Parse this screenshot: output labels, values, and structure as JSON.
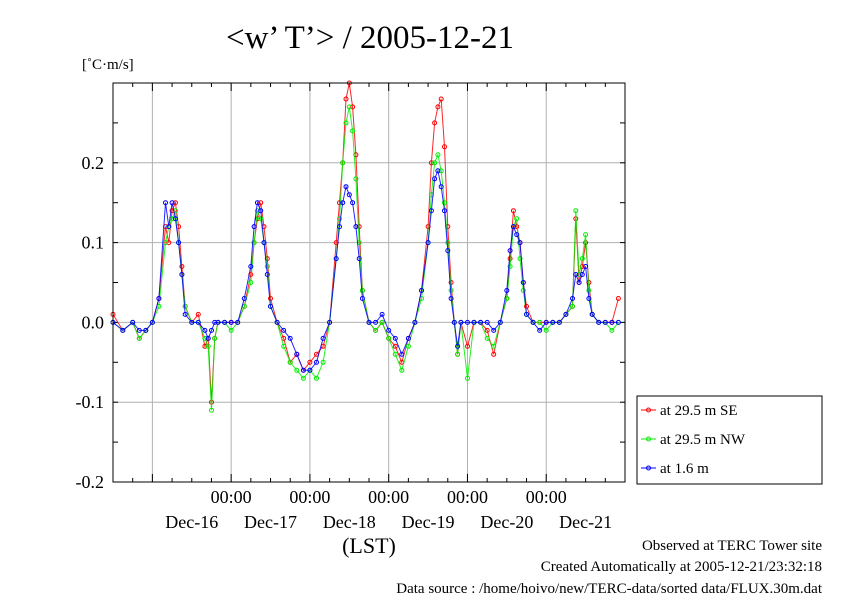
{
  "chart_data": {
    "type": "line",
    "title": "<w’ T’> / 2005-12-21",
    "ylabel": "[˚C·m/s]",
    "xlabel": "(LST)",
    "ylim": [
      -0.2,
      0.3
    ],
    "yticks": [
      "0.2",
      "0.1",
      "0.0",
      "-0.1",
      "-0.2"
    ],
    "x_time_labels": [
      "00:00",
      "00:00",
      "00:00",
      "00:00",
      "00:00"
    ],
    "x_date_labels": [
      "Dec-16",
      "Dec-17",
      "Dec-18",
      "Dec-19",
      "Dec-20",
      "Dec-21"
    ],
    "x_unit": "hours since start of Dec-15 12:00 LST",
    "grid": true,
    "legend_position": "bottom-right outside",
    "series": [
      {
        "name": "at 29.5 m SE",
        "color": "#ff0000",
        "points": [
          [
            0,
            0.01
          ],
          [
            3,
            -0.01
          ],
          [
            6,
            0.0
          ],
          [
            8,
            -0.02
          ],
          [
            10,
            -0.01
          ],
          [
            12,
            0.0
          ],
          [
            14,
            0.03
          ],
          [
            16,
            0.12
          ],
          [
            17,
            0.1
          ],
          [
            18,
            0.14
          ],
          [
            19,
            0.15
          ],
          [
            20,
            0.12
          ],
          [
            21,
            0.07
          ],
          [
            22,
            0.02
          ],
          [
            24,
            0.0
          ],
          [
            26,
            0.01
          ],
          [
            28,
            -0.03
          ],
          [
            29,
            -0.02
          ],
          [
            30,
            -0.1
          ],
          [
            31,
            -0.02
          ],
          [
            32,
            0.0
          ],
          [
            34,
            0.0
          ],
          [
            36,
            0.0
          ],
          [
            38,
            0.0
          ],
          [
            40,
            0.02
          ],
          [
            42,
            0.06
          ],
          [
            43,
            0.1
          ],
          [
            44,
            0.13
          ],
          [
            45,
            0.15
          ],
          [
            46,
            0.12
          ],
          [
            47,
            0.08
          ],
          [
            48,
            0.03
          ],
          [
            50,
            0.0
          ],
          [
            52,
            -0.02
          ],
          [
            54,
            -0.05
          ],
          [
            56,
            -0.04
          ],
          [
            58,
            -0.06
          ],
          [
            60,
            -0.05
          ],
          [
            62,
            -0.04
          ],
          [
            64,
            -0.03
          ],
          [
            66,
            0.0
          ],
          [
            68,
            0.1
          ],
          [
            69,
            0.15
          ],
          [
            70,
            0.2
          ],
          [
            71,
            0.28
          ],
          [
            72,
            0.3
          ],
          [
            73,
            0.27
          ],
          [
            74,
            0.21
          ],
          [
            75,
            0.12
          ],
          [
            76,
            0.04
          ],
          [
            78,
            0.0
          ],
          [
            80,
            -0.01
          ],
          [
            82,
            0.0
          ],
          [
            84,
            -0.02
          ],
          [
            86,
            -0.03
          ],
          [
            88,
            -0.05
          ],
          [
            90,
            -0.02
          ],
          [
            92,
            0.0
          ],
          [
            94,
            0.04
          ],
          [
            96,
            0.12
          ],
          [
            97,
            0.2
          ],
          [
            98,
            0.25
          ],
          [
            99,
            0.27
          ],
          [
            100,
            0.28
          ],
          [
            101,
            0.22
          ],
          [
            102,
            0.12
          ],
          [
            103,
            0.05
          ],
          [
            104,
            0.0
          ],
          [
            105,
            -0.04
          ],
          [
            106,
            0.0
          ],
          [
            108,
            -0.03
          ],
          [
            110,
            0.0
          ],
          [
            112,
            0.0
          ],
          [
            114,
            -0.01
          ],
          [
            116,
            -0.04
          ],
          [
            118,
            0.0
          ],
          [
            120,
            0.03
          ],
          [
            121,
            0.08
          ],
          [
            122,
            0.14
          ],
          [
            123,
            0.12
          ],
          [
            124,
            0.1
          ],
          [
            125,
            0.05
          ],
          [
            126,
            0.02
          ],
          [
            128,
            0.0
          ],
          [
            130,
            0.0
          ],
          [
            132,
            0.0
          ],
          [
            134,
            0.0
          ],
          [
            136,
            0.0
          ],
          [
            138,
            0.01
          ],
          [
            140,
            0.02
          ],
          [
            141,
            0.13
          ],
          [
            142,
            0.05
          ],
          [
            143,
            0.07
          ],
          [
            144,
            0.1
          ],
          [
            145,
            0.05
          ],
          [
            146,
            0.01
          ],
          [
            148,
            0.0
          ],
          [
            150,
            0.0
          ],
          [
            152,
            0.0
          ],
          [
            154,
            0.03
          ]
        ]
      },
      {
        "name": "at 29.5 m NW",
        "color": "#00ee00",
        "points": [
          [
            0,
            0.0
          ],
          [
            3,
            -0.01
          ],
          [
            6,
            0.0
          ],
          [
            8,
            -0.02
          ],
          [
            10,
            -0.01
          ],
          [
            12,
            0.0
          ],
          [
            14,
            0.02
          ],
          [
            16,
            0.1
          ],
          [
            17,
            0.12
          ],
          [
            18,
            0.13
          ],
          [
            19,
            0.14
          ],
          [
            20,
            0.1
          ],
          [
            21,
            0.06
          ],
          [
            22,
            0.02
          ],
          [
            24,
            0.0
          ],
          [
            26,
            0.0
          ],
          [
            28,
            -0.02
          ],
          [
            29,
            -0.03
          ],
          [
            30,
            -0.11
          ],
          [
            31,
            -0.02
          ],
          [
            32,
            0.0
          ],
          [
            34,
            0.0
          ],
          [
            36,
            -0.01
          ],
          [
            38,
            0.0
          ],
          [
            40,
            0.02
          ],
          [
            42,
            0.05
          ],
          [
            43,
            0.1
          ],
          [
            44,
            0.14
          ],
          [
            45,
            0.13
          ],
          [
            46,
            0.1
          ],
          [
            47,
            0.07
          ],
          [
            48,
            0.02
          ],
          [
            50,
            0.0
          ],
          [
            52,
            -0.03
          ],
          [
            54,
            -0.05
          ],
          [
            56,
            -0.06
          ],
          [
            58,
            -0.07
          ],
          [
            60,
            -0.06
          ],
          [
            62,
            -0.07
          ],
          [
            64,
            -0.05
          ],
          [
            66,
            0.0
          ],
          [
            68,
            0.08
          ],
          [
            69,
            0.13
          ],
          [
            70,
            0.2
          ],
          [
            71,
            0.25
          ],
          [
            72,
            0.27
          ],
          [
            73,
            0.24
          ],
          [
            74,
            0.18
          ],
          [
            75,
            0.1
          ],
          [
            76,
            0.04
          ],
          [
            78,
            0.0
          ],
          [
            80,
            -0.01
          ],
          [
            82,
            0.0
          ],
          [
            84,
            -0.02
          ],
          [
            86,
            -0.04
          ],
          [
            88,
            -0.06
          ],
          [
            90,
            -0.03
          ],
          [
            92,
            0.0
          ],
          [
            94,
            0.03
          ],
          [
            96,
            0.1
          ],
          [
            97,
            0.16
          ],
          [
            98,
            0.2
          ],
          [
            99,
            0.21
          ],
          [
            100,
            0.19
          ],
          [
            101,
            0.15
          ],
          [
            102,
            0.1
          ],
          [
            103,
            0.04
          ],
          [
            104,
            0.0
          ],
          [
            105,
            -0.04
          ],
          [
            106,
            0.0
          ],
          [
            108,
            -0.07
          ],
          [
            110,
            0.0
          ],
          [
            112,
            0.0
          ],
          [
            114,
            -0.02
          ],
          [
            116,
            -0.03
          ],
          [
            118,
            0.0
          ],
          [
            120,
            0.03
          ],
          [
            121,
            0.07
          ],
          [
            122,
            0.12
          ],
          [
            123,
            0.13
          ],
          [
            124,
            0.08
          ],
          [
            125,
            0.04
          ],
          [
            126,
            0.01
          ],
          [
            128,
            0.0
          ],
          [
            130,
            0.0
          ],
          [
            132,
            -0.01
          ],
          [
            134,
            0.0
          ],
          [
            136,
            0.0
          ],
          [
            138,
            0.01
          ],
          [
            140,
            0.02
          ],
          [
            141,
            0.14
          ],
          [
            142,
            0.06
          ],
          [
            143,
            0.08
          ],
          [
            144,
            0.11
          ],
          [
            145,
            0.04
          ],
          [
            146,
            0.01
          ],
          [
            148,
            0.0
          ],
          [
            150,
            0.0
          ],
          [
            152,
            -0.01
          ],
          [
            154,
            0.0
          ]
        ]
      },
      {
        "name": "at 1.6 m",
        "color": "#0000ff",
        "points": [
          [
            0,
            0.0
          ],
          [
            3,
            -0.01
          ],
          [
            6,
            0.0
          ],
          [
            8,
            -0.01
          ],
          [
            10,
            -0.01
          ],
          [
            12,
            0.0
          ],
          [
            14,
            0.03
          ],
          [
            16,
            0.15
          ],
          [
            17,
            0.12
          ],
          [
            18,
            0.15
          ],
          [
            19,
            0.13
          ],
          [
            20,
            0.1
          ],
          [
            21,
            0.06
          ],
          [
            22,
            0.01
          ],
          [
            24,
            0.0
          ],
          [
            26,
            0.0
          ],
          [
            28,
            -0.01
          ],
          [
            29,
            -0.02
          ],
          [
            30,
            -0.01
          ],
          [
            31,
            0.0
          ],
          [
            32,
            0.0
          ],
          [
            34,
            0.0
          ],
          [
            36,
            0.0
          ],
          [
            38,
            0.0
          ],
          [
            40,
            0.03
          ],
          [
            42,
            0.07
          ],
          [
            43,
            0.12
          ],
          [
            44,
            0.15
          ],
          [
            45,
            0.14
          ],
          [
            46,
            0.1
          ],
          [
            47,
            0.06
          ],
          [
            48,
            0.02
          ],
          [
            50,
            0.0
          ],
          [
            52,
            -0.01
          ],
          [
            54,
            -0.02
          ],
          [
            56,
            -0.04
          ],
          [
            58,
            -0.06
          ],
          [
            60,
            -0.06
          ],
          [
            62,
            -0.05
          ],
          [
            64,
            -0.02
          ],
          [
            66,
            0.0
          ],
          [
            68,
            0.08
          ],
          [
            69,
            0.12
          ],
          [
            70,
            0.15
          ],
          [
            71,
            0.17
          ],
          [
            72,
            0.16
          ],
          [
            73,
            0.15
          ],
          [
            74,
            0.12
          ],
          [
            75,
            0.08
          ],
          [
            76,
            0.03
          ],
          [
            78,
            0.0
          ],
          [
            80,
            0.0
          ],
          [
            82,
            0.01
          ],
          [
            84,
            -0.01
          ],
          [
            86,
            -0.02
          ],
          [
            88,
            -0.04
          ],
          [
            90,
            -0.02
          ],
          [
            92,
            0.0
          ],
          [
            94,
            0.04
          ],
          [
            96,
            0.1
          ],
          [
            97,
            0.14
          ],
          [
            98,
            0.18
          ],
          [
            99,
            0.19
          ],
          [
            100,
            0.17
          ],
          [
            101,
            0.14
          ],
          [
            102,
            0.09
          ],
          [
            103,
            0.03
          ],
          [
            104,
            0.0
          ],
          [
            105,
            -0.03
          ],
          [
            106,
            0.0
          ],
          [
            108,
            0.0
          ],
          [
            110,
            0.0
          ],
          [
            112,
            0.0
          ],
          [
            114,
            0.0
          ],
          [
            116,
            -0.01
          ],
          [
            118,
            0.0
          ],
          [
            120,
            0.04
          ],
          [
            121,
            0.09
          ],
          [
            122,
            0.12
          ],
          [
            123,
            0.11
          ],
          [
            124,
            0.1
          ],
          [
            125,
            0.05
          ],
          [
            126,
            0.01
          ],
          [
            128,
            0.0
          ],
          [
            130,
            -0.01
          ],
          [
            132,
            0.0
          ],
          [
            134,
            0.0
          ],
          [
            136,
            0.0
          ],
          [
            138,
            0.01
          ],
          [
            140,
            0.03
          ],
          [
            141,
            0.06
          ],
          [
            142,
            0.05
          ],
          [
            143,
            0.06
          ],
          [
            144,
            0.07
          ],
          [
            145,
            0.03
          ],
          [
            146,
            0.01
          ],
          [
            148,
            0.0
          ],
          [
            150,
            0.0
          ],
          [
            152,
            0.0
          ],
          [
            154,
            0.0
          ]
        ]
      }
    ]
  },
  "footer": {
    "line1": "Observed at TERC Tower site",
    "line2": "Created Automatically at 2005-12-21/23:32:18",
    "line3": "Data source : /home/hoivo/new/TERC-data/sorted  data/FLUX.30m.dat"
  }
}
